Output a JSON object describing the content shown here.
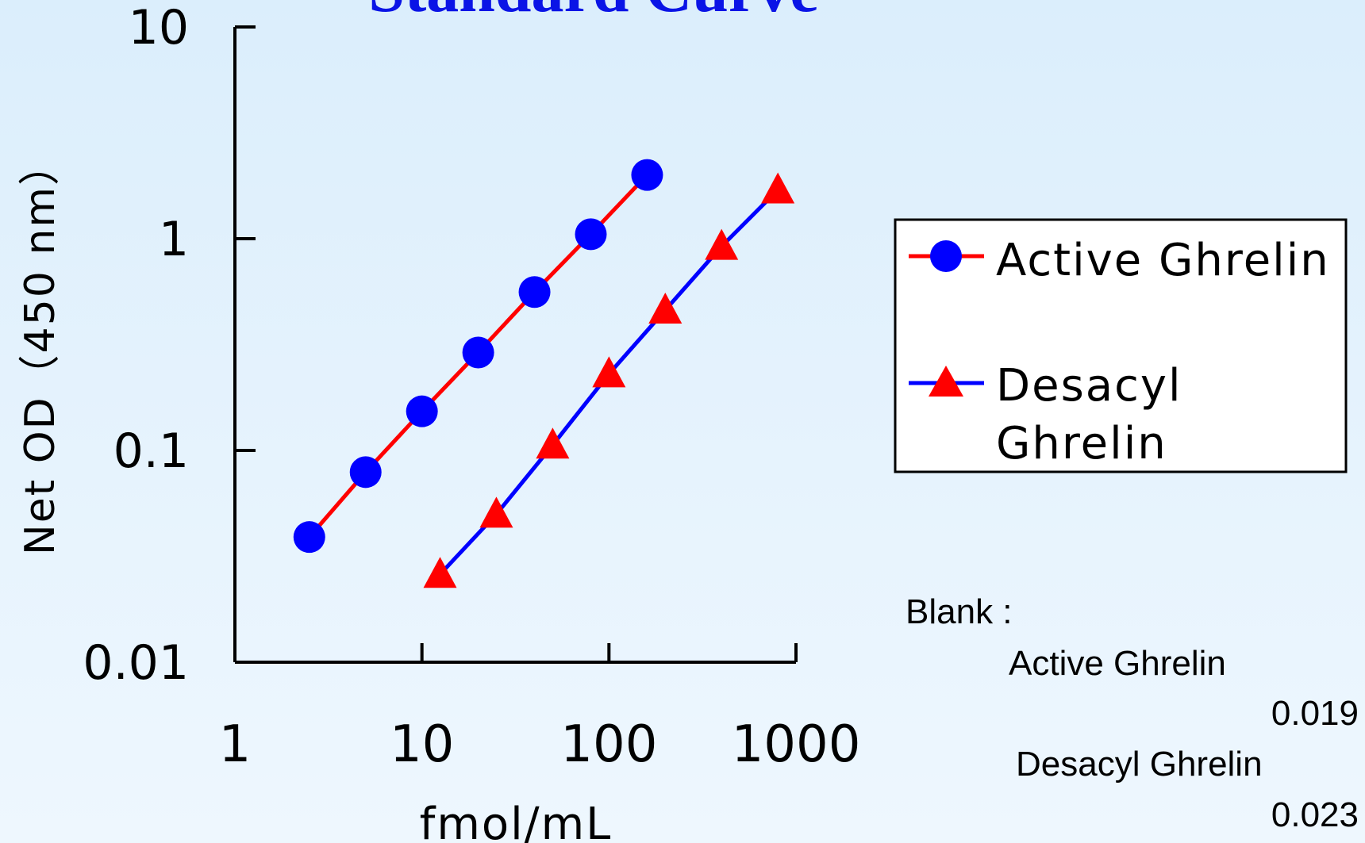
{
  "chart_data": {
    "type": "line",
    "title": "Standard Curve",
    "xlabel": "fmol/mL",
    "ylabel": "Net OD（450 nm）",
    "x_scale": "log",
    "y_scale": "log",
    "xlim": [
      1,
      1000
    ],
    "ylim": [
      0.01,
      10
    ],
    "x_ticks": [
      "1",
      "10",
      "100",
      "1000"
    ],
    "y_ticks": [
      "0.01",
      "0.1",
      "1",
      "10"
    ],
    "grid": false,
    "legend_position": "right",
    "series": [
      {
        "name": "Active Ghrelin",
        "line_color": "#ff0000",
        "marker": "circle",
        "marker_color": "#0000ff",
        "x": [
          2.5,
          5,
          10,
          20,
          40,
          80,
          160
        ],
        "y": [
          0.039,
          0.079,
          0.153,
          0.29,
          0.56,
          1.05,
          2.0
        ]
      },
      {
        "name_lines": [
          "Desacyl",
          "Ghrelin"
        ],
        "line_color": "#0000ff",
        "marker": "triangle",
        "marker_color": "#ff0000",
        "x": [
          12.5,
          25,
          50,
          100,
          200,
          400,
          800
        ],
        "y": [
          0.026,
          0.05,
          0.106,
          0.23,
          0.46,
          0.92,
          1.7
        ]
      }
    ]
  },
  "blank": {
    "heading": "Blank :",
    "active_label": "Active Ghrelin",
    "active_value": "0.019",
    "desacyl_label": "Desacyl Ghrelin",
    "desacyl_value": "0.023"
  }
}
